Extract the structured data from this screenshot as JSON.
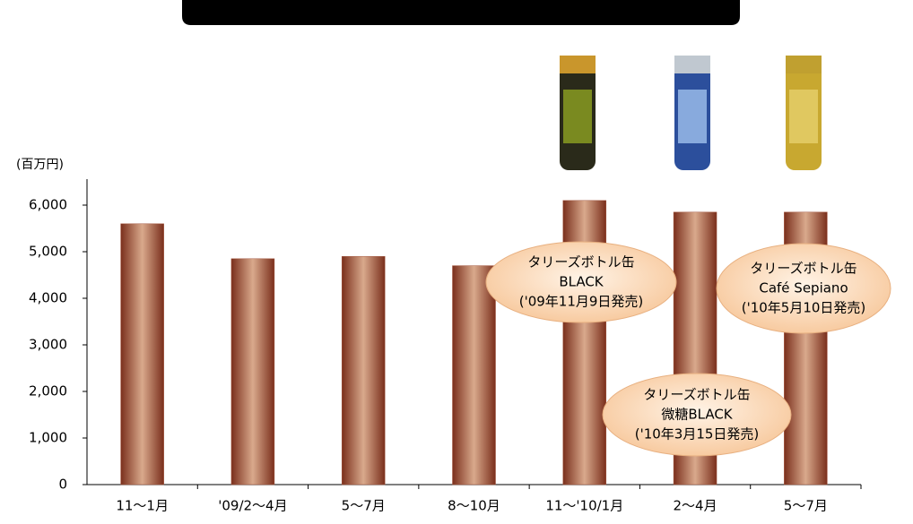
{
  "chart_data": {
    "type": "bar",
    "y_unit_label": "(百万円)",
    "categories": [
      "11～1月",
      "'09/2～4月",
      "5～7月",
      "8～10月",
      "11～'10/1月",
      "2～4月",
      "5～7月"
    ],
    "values": [
      5600,
      4850,
      4900,
      4700,
      6100,
      5850,
      5850
    ],
    "color": "#a4573f",
    "ylim": [
      0,
      6500
    ],
    "yticks": [
      0,
      {
        "value": 1000,
        "label": "1,000"
      },
      {
        "value": 2000,
        "label": "2,000"
      },
      {
        "value": 3000,
        "label": "3,000"
      },
      {
        "value": 4000,
        "label": "4,000"
      },
      {
        "value": 5000,
        "label": "5,000"
      },
      {
        "value": 6000,
        "label": "6,000"
      }
    ],
    "grid": false,
    "annotations": [
      {
        "lines": [
          "タリーズボトル缶",
          "BLACK",
          "('09年11月9日発売)"
        ]
      },
      {
        "lines": [
          "タリーズボトル缶",
          "Café Sepiano",
          "('10年5月10日発売)"
        ]
      },
      {
        "lines": [
          "タリーズボトル缶",
          "微糖BLACK",
          "('10年3月15日発売)"
        ]
      }
    ]
  }
}
